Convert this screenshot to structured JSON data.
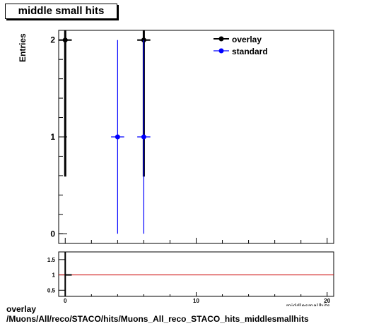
{
  "title": "middle small hits",
  "footer": {
    "line1": "overlay",
    "line2": "/Muons/All/reco/STACO/hits/Muons_All_reco_STACO_hits_middlesmallhits"
  },
  "colors": {
    "overlay": "#000000",
    "standard": "#0000ff",
    "ratio_line": "#cc0000"
  },
  "chart_data": [
    {
      "type": "scatter",
      "title": "middle small hits",
      "ylabel": "Entries",
      "xlabel": "",
      "xlim": [
        -0.5,
        20.5
      ],
      "ylim": [
        -0.1,
        2.1
      ],
      "y_ticks": [
        0,
        1,
        2
      ],
      "legend_position": "top-right",
      "series": [
        {
          "name": "overlay",
          "color": "#000000",
          "points": [
            {
              "x": 0,
              "y": 2,
              "xerr": 0.5,
              "yerr": 1.41
            },
            {
              "x": 6,
              "y": 2,
              "xerr": 0.5,
              "yerr": 1.41
            }
          ]
        },
        {
          "name": "standard",
          "color": "#0000ff",
          "points": [
            {
              "x": 4,
              "y": 1,
              "xerr": 0.5,
              "yerr": 1.0
            },
            {
              "x": 6,
              "y": 1,
              "xerr": 0.5,
              "yerr": 1.0
            }
          ]
        }
      ]
    },
    {
      "type": "line",
      "title": "",
      "xlim": [
        -0.5,
        20.5
      ],
      "ylim": [
        0.3,
        1.75
      ],
      "x_ticks": [
        0,
        10,
        20
      ],
      "y_ticks": [
        0.5,
        1,
        1.5
      ],
      "y_tick_labels": [
        "0.5",
        "1",
        "1.5"
      ],
      "reference_line": 1,
      "points": [
        {
          "x": 0,
          "y": 1
        }
      ]
    }
  ]
}
